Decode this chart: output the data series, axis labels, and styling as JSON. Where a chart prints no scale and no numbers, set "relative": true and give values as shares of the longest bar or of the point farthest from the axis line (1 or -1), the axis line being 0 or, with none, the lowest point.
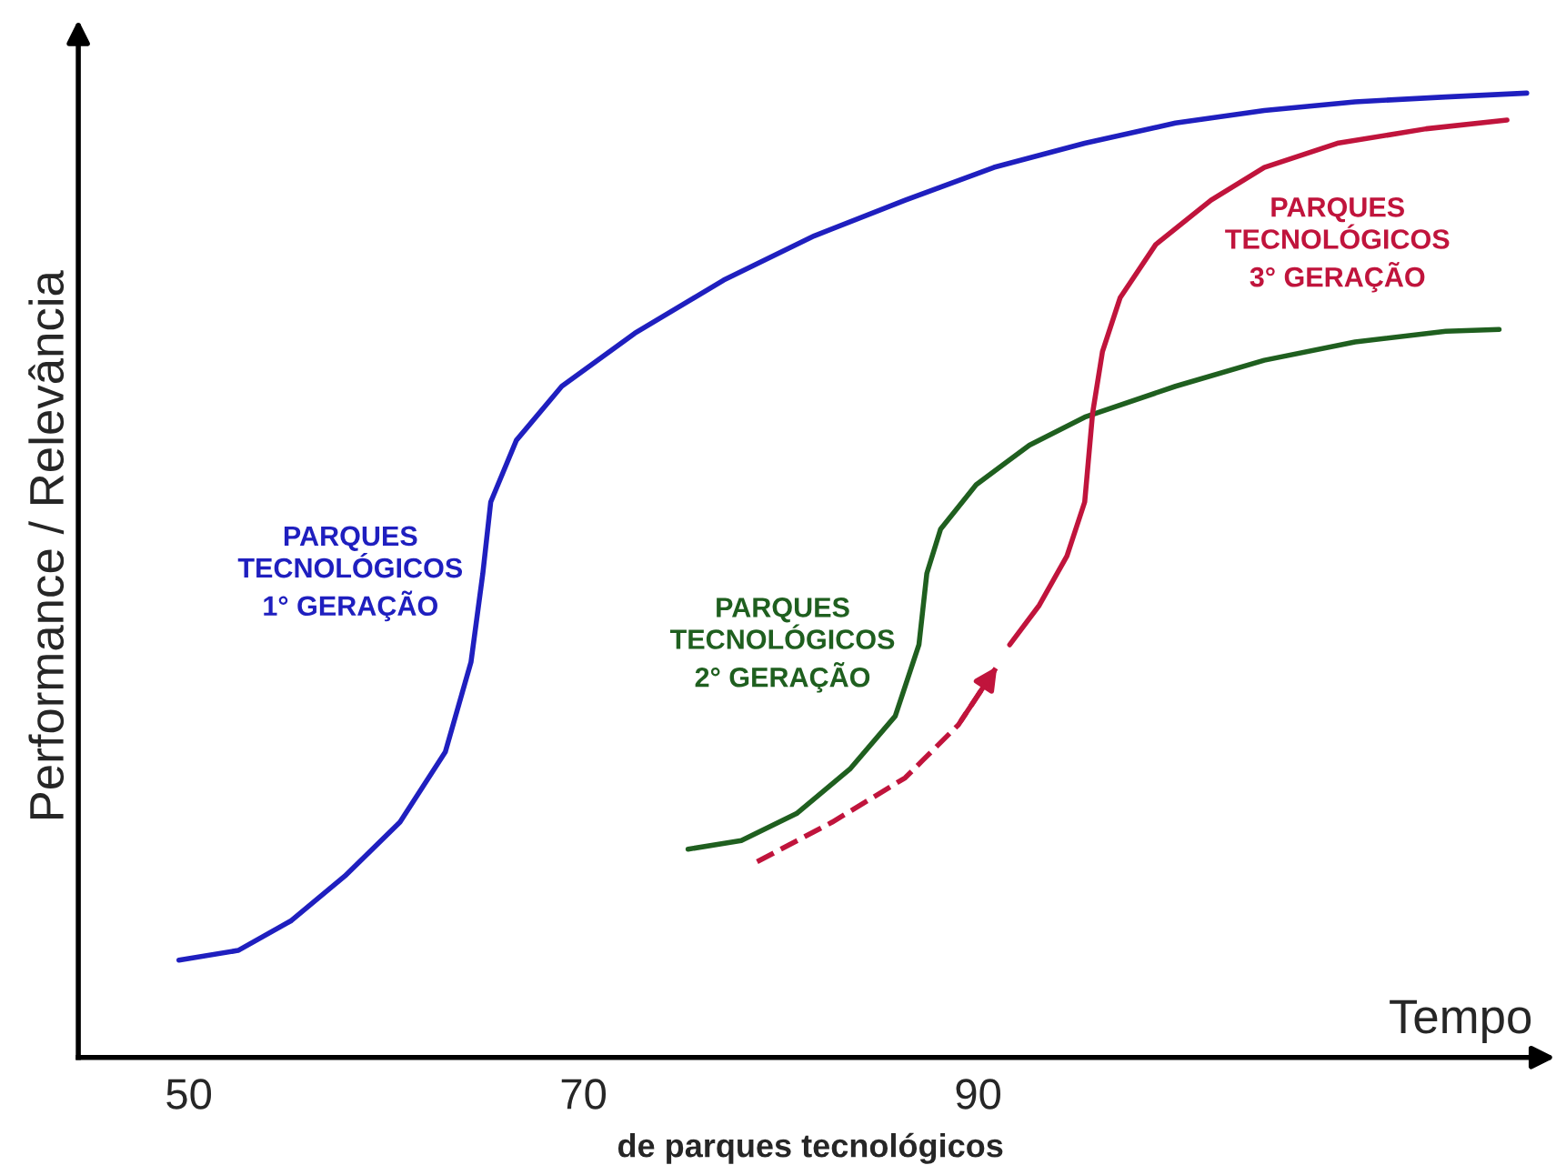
{
  "chart_data": {
    "type": "line",
    "relative": true,
    "xlabel": "de parques tecnológicos",
    "ylabel": "Performance / Relevância",
    "annotations": [
      "Tempo"
    ],
    "xlim": [
      44.4,
      118.6
    ],
    "xticks": [
      50,
      70,
      90
    ],
    "grid": false,
    "legend": false,
    "marker": "none",
    "tick_labels": "x",
    "series": [
      {
        "name": "PARQUES\nTECNOLÓGICOS\n1° GERAÇÃO",
        "color": "#1f1fbf",
        "line_style": "solid",
        "x": [
          49.5,
          52.5,
          55.2,
          57.9,
          60.7,
          63.0,
          64.3,
          64.9,
          65.3,
          66.6,
          68.9,
          72.6,
          77.1,
          81.7,
          86.3,
          90.8,
          95.4,
          100.0,
          104.5,
          109.1,
          113.7,
          117.8
        ],
        "values": [
          0.101,
          0.111,
          0.142,
          0.188,
          0.244,
          0.317,
          0.41,
          0.502,
          0.576,
          0.64,
          0.696,
          0.751,
          0.806,
          0.852,
          0.889,
          0.923,
          0.948,
          0.969,
          0.982,
          0.991,
          0.996,
          1.0
        ]
      },
      {
        "name": "PARQUES\nTECNOLÓGICOS\n2° GERAÇÃO",
        "color": "#1f5f1f",
        "line_style": "solid",
        "x": [
          75.3,
          78.0,
          80.8,
          83.5,
          85.8,
          87.0,
          87.4,
          88.1,
          89.9,
          92.6,
          95.4,
          100.0,
          104.5,
          109.1,
          113.7,
          116.4
        ],
        "values": [
          0.216,
          0.225,
          0.253,
          0.299,
          0.354,
          0.428,
          0.502,
          0.548,
          0.594,
          0.635,
          0.664,
          0.696,
          0.723,
          0.742,
          0.753,
          0.755
        ]
      },
      {
        "name": "PARQUES\nTECNOLÓGICOS\n3° GERAÇÃO",
        "color": "#c0143c",
        "line_style": "solid",
        "x": [
          91.6,
          93.1,
          94.5,
          95.4,
          95.8,
          96.3,
          97.2,
          99.0,
          101.8,
          104.5,
          108.2,
          112.7,
          116.8
        ],
        "values": [
          0.428,
          0.469,
          0.52,
          0.576,
          0.668,
          0.732,
          0.788,
          0.843,
          0.889,
          0.923,
          0.948,
          0.963,
          0.972
        ]
      },
      {
        "color": "#c0143c",
        "line_style": "dashed",
        "x": [
          78.8,
          82.6,
          86.3,
          89.0,
          91.1
        ],
        "values": [
          0.203,
          0.244,
          0.29,
          0.345,
          0.41
        ]
      }
    ]
  }
}
